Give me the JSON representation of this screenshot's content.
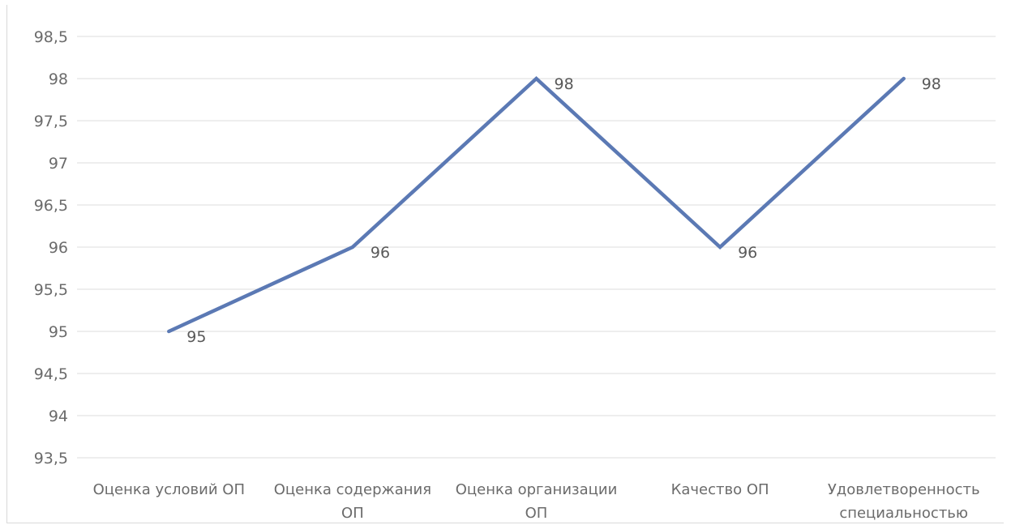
{
  "chart_data": {
    "type": "line",
    "title": "",
    "xlabel": "",
    "ylabel": "",
    "categories": [
      "Оценка условий ОП",
      "Оценка содержания ОП",
      "Оценка организации ОП",
      "Качество ОП",
      "Удовлетворенность специальностью"
    ],
    "series": [
      {
        "values": [
          95,
          96,
          98,
          96,
          98
        ],
        "color": "#5b79b4"
      }
    ],
    "data_labels": [
      "95",
      "96",
      "98",
      "96",
      "98"
    ],
    "ylim": [
      93.5,
      98.5
    ],
    "y_ticks": [
      "98,5",
      "98",
      "97,5",
      "97",
      "96,5",
      "96",
      "95,5",
      "95",
      "94,5",
      "94",
      "93,5"
    ],
    "grid": true,
    "legend": "none"
  }
}
